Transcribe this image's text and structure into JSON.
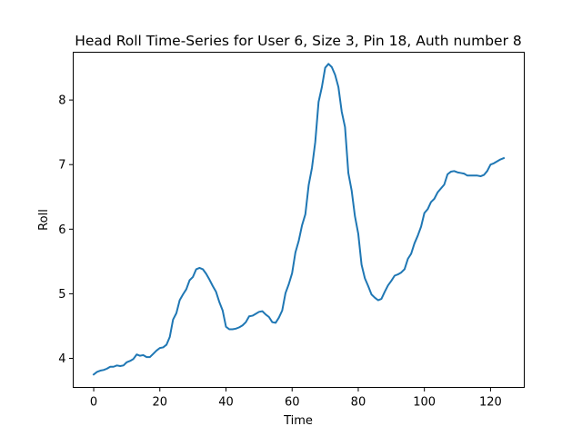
{
  "chart_data": {
    "type": "line",
    "title": "Head Roll Time-Series for User 6, Size 3, Pin 18, Auth number 8",
    "xlabel": "Time",
    "ylabel": "Roll",
    "xlim": [
      -6.2,
      130.2
    ],
    "ylim": [
      3.55,
      8.74
    ],
    "xticks": [
      0,
      20,
      40,
      60,
      80,
      100,
      120
    ],
    "yticks": [
      4,
      5,
      6,
      7,
      8
    ],
    "grid": false,
    "color": "#1f77b4",
    "series": [
      {
        "x": [
          0,
          1,
          2,
          3,
          4,
          5,
          6,
          7,
          8,
          9,
          10,
          11,
          12,
          13,
          14,
          15,
          16,
          17,
          18,
          19,
          20,
          21,
          22,
          23,
          24,
          25,
          26,
          27,
          28,
          29,
          30,
          31,
          32,
          33,
          34,
          35,
          36,
          37,
          38,
          39,
          40,
          41,
          42,
          43,
          44,
          45,
          46,
          47,
          48,
          49,
          50,
          51,
          52,
          53,
          54,
          55,
          56,
          57,
          58,
          59,
          60,
          61,
          62,
          63,
          64,
          65,
          66,
          67,
          68,
          69,
          70,
          71,
          72,
          73,
          74,
          75,
          76,
          77,
          78,
          79,
          80,
          81,
          82,
          83,
          84,
          85,
          86,
          87,
          88,
          89,
          90,
          91,
          92,
          93,
          94,
          95,
          96,
          97,
          98,
          99,
          100,
          101,
          102,
          103,
          104,
          105,
          106,
          107,
          108,
          109,
          110,
          111,
          112,
          113,
          114,
          115,
          116,
          117,
          118,
          119,
          120,
          121,
          122,
          123,
          124
        ],
        "values": [
          3.75,
          3.79,
          3.81,
          3.82,
          3.84,
          3.87,
          3.87,
          3.89,
          3.88,
          3.89,
          3.94,
          3.96,
          3.99,
          4.06,
          4.04,
          4.05,
          4.02,
          4.02,
          4.07,
          4.12,
          4.16,
          4.17,
          4.21,
          4.33,
          4.6,
          4.7,
          4.9,
          4.99,
          5.07,
          5.21,
          5.26,
          5.38,
          5.4,
          5.38,
          5.31,
          5.22,
          5.12,
          5.03,
          4.87,
          4.74,
          4.49,
          4.45,
          4.45,
          4.46,
          4.48,
          4.51,
          4.56,
          4.65,
          4.66,
          4.69,
          4.72,
          4.73,
          4.68,
          4.64,
          4.56,
          4.55,
          4.63,
          4.74,
          5.01,
          5.15,
          5.32,
          5.64,
          5.82,
          6.06,
          6.23,
          6.68,
          6.95,
          7.35,
          7.97,
          8.2,
          8.5,
          8.56,
          8.51,
          8.39,
          8.2,
          7.82,
          7.58,
          6.87,
          6.6,
          6.2,
          5.93,
          5.45,
          5.24,
          5.12,
          4.99,
          4.94,
          4.9,
          4.92,
          5.03,
          5.13,
          5.2,
          5.28,
          5.3,
          5.33,
          5.38,
          5.54,
          5.62,
          5.78,
          5.9,
          6.04,
          6.25,
          6.31,
          6.42,
          6.47,
          6.57,
          6.63,
          6.69,
          6.85,
          6.89,
          6.9,
          6.88,
          6.87,
          6.86,
          6.83,
          6.83,
          6.83,
          6.83,
          6.82,
          6.84,
          6.9,
          7.0,
          7.02,
          7.05,
          7.08,
          7.1
        ]
      }
    ]
  }
}
